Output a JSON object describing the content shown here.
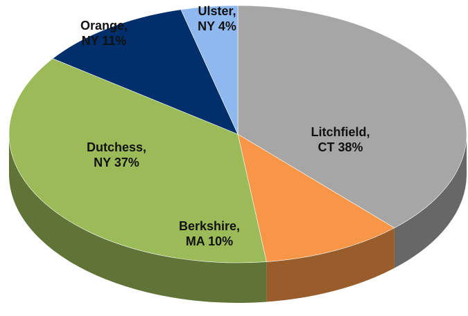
{
  "chart_data": {
    "type": "pie",
    "categories": [
      "Litchfield, CT",
      "Berkshire, MA",
      "Dutchess, NY",
      "Orange, NY",
      "Ulster, NY"
    ],
    "values": [
      38,
      10,
      37,
      11,
      4
    ],
    "value_labels": [
      "38%",
      "10%",
      "37%",
      "11%",
      "4%"
    ],
    "colors": [
      "#a6a6a6",
      "#f79646",
      "#9bbb59",
      "#002f6c",
      "#8fb9ee"
    ]
  }
}
